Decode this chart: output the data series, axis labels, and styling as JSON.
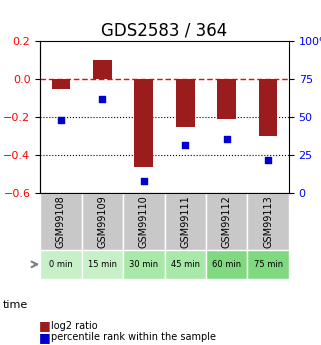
{
  "title": "GDS2583 / 364",
  "samples": [
    "GSM99108",
    "GSM99109",
    "GSM99110",
    "GSM99111",
    "GSM99112",
    "GSM99113"
  ],
  "time_labels": [
    "0 min",
    "15 min",
    "30 min",
    "45 min",
    "60 min",
    "75 min"
  ],
  "log2_ratio": [
    -0.05,
    0.1,
    -0.46,
    -0.25,
    -0.21,
    -0.3
  ],
  "percentile_rank": [
    48,
    62,
    8,
    32,
    36,
    22
  ],
  "bar_color": "#9B1C1C",
  "dot_color": "#0000CC",
  "bar_ylim": [
    -0.6,
    0.2
  ],
  "pct_ylim": [
    0,
    100
  ],
  "bar_yticks": [
    0.2,
    0.0,
    -0.2,
    -0.4,
    -0.6
  ],
  "pct_yticks": [
    100,
    75,
    50,
    25,
    0
  ],
  "grid_lines": [
    -0.2,
    -0.4
  ],
  "dashed_line_y": 0.0,
  "title_fontsize": 12,
  "axis_label_fontsize": 8,
  "tick_fontsize": 8,
  "sample_fontsize": 7,
  "time_colors": [
    "#c8f0c8",
    "#c8f0c8",
    "#a8e8a8",
    "#a8e8a8",
    "#80d880",
    "#80d880"
  ],
  "sample_bg_color": "#c8c8c8",
  "legend_log2_label": "log2 ratio",
  "legend_pct_label": "percentile rank within the sample"
}
